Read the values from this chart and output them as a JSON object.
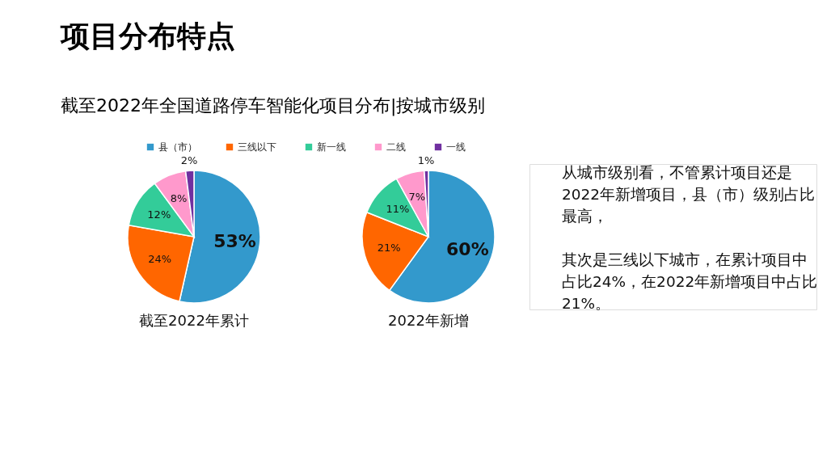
{
  "chart_data": [
    {
      "type": "pie",
      "title": "项目分布特点",
      "subtitle": "截至2022年全国道路停车智能化项目分布|按城市级别",
      "categories": [
        "县（市）",
        "三线以下",
        "新一线",
        "二线",
        "一线"
      ],
      "colors": [
        "#3399cc",
        "#ff6600",
        "#33cc99",
        "#ff99cc",
        "#7030a0"
      ],
      "legend": "top",
      "series": [
        {
          "name": "截至2022年累计",
          "values": [
            53,
            24,
            12,
            8,
            2
          ],
          "value_labels": [
            "53%",
            "24%",
            "12%",
            "8%",
            "2%"
          ]
        },
        {
          "name": "2022年新增",
          "values": [
            60,
            21,
            11,
            7,
            1
          ],
          "value_labels": [
            "60%",
            "21%",
            "11%",
            "7%",
            "1%"
          ]
        }
      ]
    },
    {
      "type": "other",
      "annotations": [
        "从城市级别看，不管累计项目还是2022年新增项目，县（市）级别占比最高，",
        "其次是三线以下城市，在累计项目中占比24%，在2022年新增项目中占比21%。"
      ]
    }
  ]
}
